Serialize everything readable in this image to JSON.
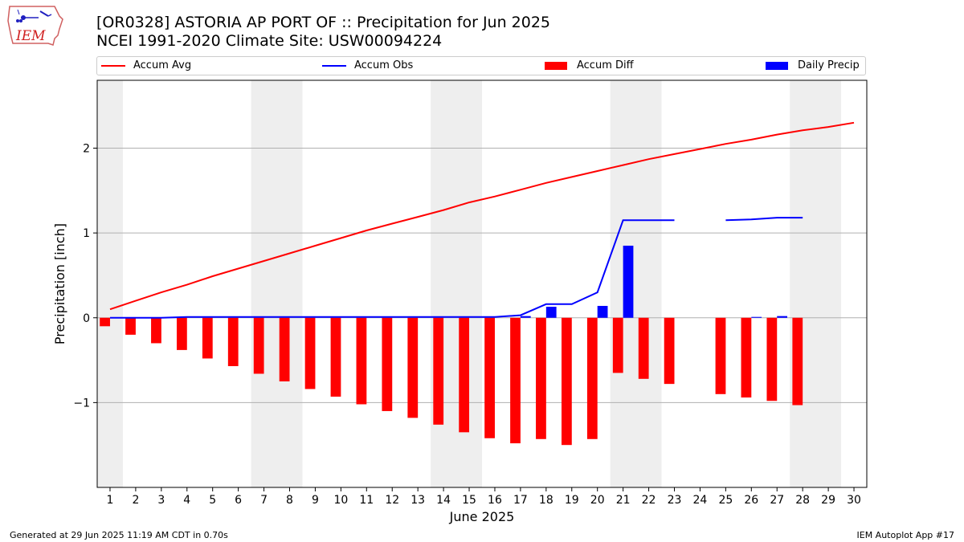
{
  "header": {
    "title": "[OR0328] ASTORIA AP PORT OF :: Precipitation for Jun 2025",
    "subtitle": "NCEI 1991-2020 Climate Site: USW00094224"
  },
  "logo": {
    "text": "IEM"
  },
  "footer": {
    "left": "Generated at 29 Jun 2025 11:19 AM CDT in 0.70s",
    "right": "IEM Autoplot App #17"
  },
  "chart_data": {
    "type": "bar",
    "xlabel": "June 2025",
    "ylabel": "Precipitation [inch]",
    "xlim": [
      0.5,
      30.5
    ],
    "ylim": [
      -2.0,
      2.8
    ],
    "yticks": [
      -1,
      0,
      1,
      2
    ],
    "ytick_labels": [
      "−1",
      "0",
      "1",
      "2"
    ],
    "x": [
      1,
      2,
      3,
      4,
      5,
      6,
      7,
      8,
      9,
      10,
      11,
      12,
      13,
      14,
      15,
      16,
      17,
      18,
      19,
      20,
      21,
      22,
      23,
      24,
      25,
      26,
      27,
      28,
      29,
      30
    ],
    "grid": "y",
    "legend_position": "top",
    "weekend_shading": [
      [
        0.5,
        1.5
      ],
      [
        6.5,
        8.5
      ],
      [
        13.5,
        15.5
      ],
      [
        20.5,
        22.5
      ],
      [
        27.5,
        29.5
      ]
    ],
    "legend": [
      {
        "label": "Accum Avg",
        "kind": "line",
        "color": "#ff0000"
      },
      {
        "label": "Accum Obs",
        "kind": "line",
        "color": "#0000ff"
      },
      {
        "label": "Accum Diff",
        "kind": "bar",
        "color": "#ff0000"
      },
      {
        "label": "Daily Precip",
        "kind": "bar",
        "color": "#0000ff"
      }
    ],
    "series": [
      {
        "name": "Accum Avg",
        "type": "line",
        "color": "#ff0000",
        "values": [
          0.1,
          0.2,
          0.3,
          0.39,
          0.49,
          0.58,
          0.67,
          0.76,
          0.85,
          0.94,
          1.03,
          1.11,
          1.19,
          1.27,
          1.36,
          1.43,
          1.51,
          1.59,
          1.66,
          1.73,
          1.8,
          1.87,
          1.93,
          1.99,
          2.05,
          2.1,
          2.16,
          2.21,
          2.25,
          2.3
        ]
      },
      {
        "name": "Accum Obs",
        "type": "line",
        "color": "#0000ff",
        "values": [
          0.0,
          0.0,
          0.0,
          0.01,
          0.01,
          0.01,
          0.01,
          0.01,
          0.01,
          0.01,
          0.01,
          0.01,
          0.01,
          0.01,
          0.01,
          0.01,
          0.03,
          0.16,
          0.16,
          0.3,
          1.15,
          1.15,
          1.15,
          null,
          1.15,
          1.16,
          1.18,
          1.18,
          null,
          null
        ]
      },
      {
        "name": "Accum Diff",
        "type": "bar",
        "color": "#ff0000",
        "values": [
          -0.1,
          -0.2,
          -0.3,
          -0.38,
          -0.48,
          -0.57,
          -0.66,
          -0.75,
          -0.84,
          -0.93,
          -1.02,
          -1.1,
          -1.18,
          -1.26,
          -1.35,
          -1.42,
          -1.48,
          -1.43,
          -1.5,
          -1.43,
          -0.65,
          -0.72,
          -0.78,
          null,
          -0.9,
          -0.94,
          -0.98,
          -1.03,
          null,
          null
        ]
      },
      {
        "name": "Daily Precip",
        "type": "bar",
        "color": "#0000ff",
        "values": [
          0.0,
          0.0,
          0.0,
          0.0,
          0.0,
          0.0,
          0.0,
          0.0,
          0.0,
          0.0,
          0.0,
          0.0,
          0.0,
          0.0,
          0.0,
          0.0,
          0.02,
          0.13,
          0.0,
          0.14,
          0.85,
          0.0,
          0.0,
          null,
          0.0,
          0.01,
          0.02,
          0.0,
          null,
          null
        ]
      }
    ]
  }
}
